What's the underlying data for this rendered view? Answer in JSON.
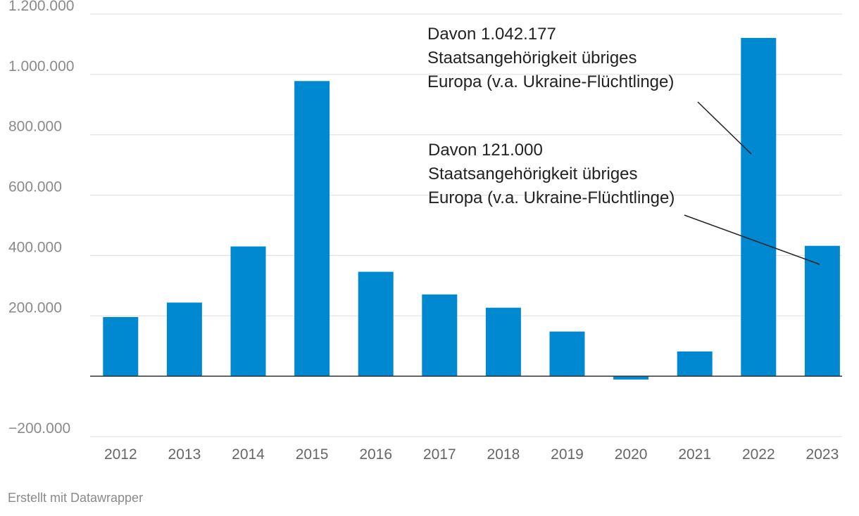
{
  "chart_data": {
    "type": "bar",
    "categories": [
      "2012",
      "2013",
      "2014",
      "2015",
      "2016",
      "2017",
      "2018",
      "2019",
      "2020",
      "2021",
      "2022",
      "2023"
    ],
    "values": [
      196000,
      244000,
      430000,
      978000,
      346000,
      271000,
      227000,
      148000,
      -11000,
      82000,
      1121000,
      432000
    ],
    "ylim": [
      -200000,
      1200000
    ],
    "yticks": [
      -200000,
      0,
      200000,
      400000,
      600000,
      800000,
      1000000,
      1200000
    ],
    "ytick_labels": [
      "−200.000",
      "",
      "200.000",
      "400.000",
      "600.000",
      "800.000",
      "1.000.000",
      "1.200.000"
    ],
    "bar_color": "#0089d0",
    "grid": true,
    "title": "",
    "xlabel": "",
    "ylabel": "",
    "annotations": [
      {
        "category": "2022",
        "lines": [
          "Davon 1.042.177",
          "Staatsangehörigkeit übriges",
          "Europa (v.a. Ukraine-Flüchtlinge)"
        ]
      },
      {
        "category": "2023",
        "lines": [
          "Davon 121.000",
          "Staatsangehörigkeit übriges",
          "Europa (v.a. Ukraine-Flüchtlinge)"
        ]
      }
    ]
  },
  "footer": {
    "credit": "Erstellt mit Datawrapper"
  }
}
